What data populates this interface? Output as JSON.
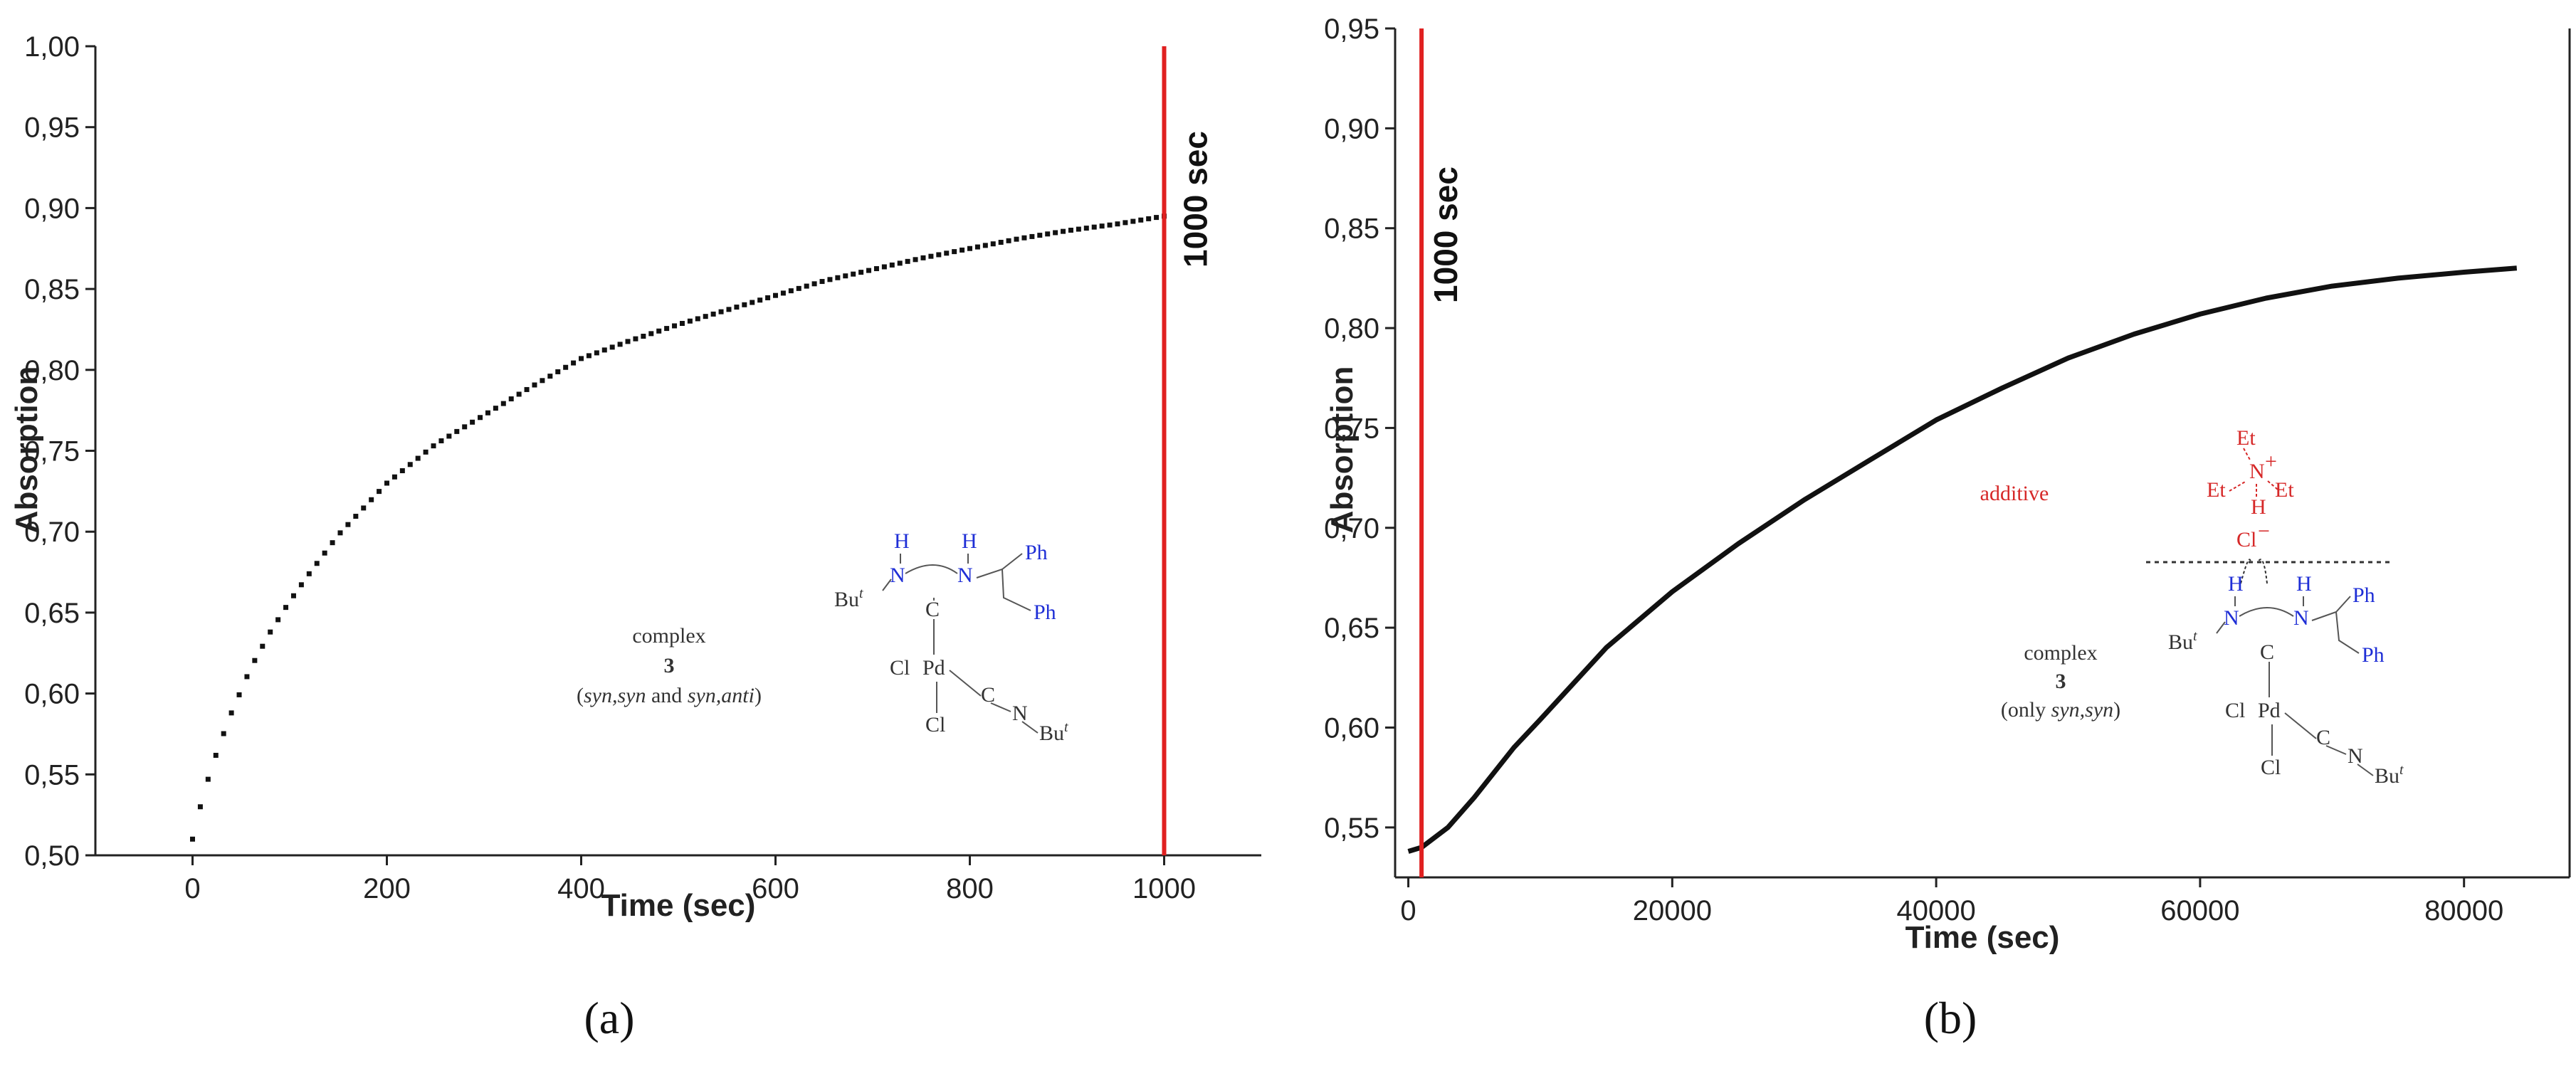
{
  "colors": {
    "data": "#111111",
    "marker": "#e02020",
    "blue": "#1f2fd6",
    "red": "#d62828"
  },
  "chart_data": [
    {
      "panel": "a",
      "type": "scatter",
      "panel_label": "(a)",
      "title": "",
      "xlabel": "Time (sec)",
      "ylabel": "Absorption",
      "xlim": [
        -100,
        1100
      ],
      "ylim": [
        0.5,
        1.0
      ],
      "x_ticks": [
        0,
        200,
        400,
        600,
        800,
        1000
      ],
      "x_tick_labels": [
        "0",
        "200",
        "400",
        "600",
        "800",
        "1000"
      ],
      "y_ticks": [
        0.5,
        0.55,
        0.6,
        0.65,
        0.7,
        0.75,
        0.8,
        0.85,
        0.9,
        0.95,
        1.0
      ],
      "y_tick_labels": [
        "0,50",
        "0,55",
        "0,60",
        "0,65",
        "0,70",
        "0,75",
        "0,80",
        "0,85",
        "0,90",
        "0,95",
        "1,00"
      ],
      "series": [
        {
          "x": [
            0,
            10,
            20,
            30,
            40,
            50,
            60,
            80,
            100,
            120,
            150,
            200,
            250,
            300,
            350,
            400,
            450,
            500,
            550,
            600,
            650,
            700,
            750,
            800,
            850,
            900,
            950,
            1000
          ],
          "y": [
            0.51,
            0.535,
            0.555,
            0.572,
            0.588,
            0.602,
            0.616,
            0.638,
            0.657,
            0.674,
            0.698,
            0.73,
            0.754,
            0.772,
            0.79,
            0.807,
            0.818,
            0.828,
            0.837,
            0.846,
            0.855,
            0.862,
            0.869,
            0.875,
            0.881,
            0.886,
            0.89,
            0.895
          ]
        }
      ],
      "marker": {
        "x": 1000,
        "label": "1000 sec"
      },
      "annotations": {
        "complex_label": "complex",
        "complex_number": "3",
        "isomers_open": "(",
        "isomers_syn1": "syn,syn",
        "isomers_and": " and ",
        "isomers_syn2": "syn,anti",
        "isomers_close": ")"
      }
    },
    {
      "panel": "b",
      "type": "line",
      "panel_label": "(b)",
      "title": "",
      "xlabel": "Time (sec)",
      "ylabel": "Absorption",
      "xlim": [
        -1000,
        88000
      ],
      "ylim": [
        0.525,
        0.95
      ],
      "x_ticks": [
        0,
        20000,
        40000,
        60000,
        80000
      ],
      "x_tick_labels": [
        "0",
        "20000",
        "40000",
        "60000",
        "80000"
      ],
      "y_ticks": [
        0.55,
        0.6,
        0.65,
        0.7,
        0.75,
        0.8,
        0.85,
        0.9,
        0.95
      ],
      "y_tick_labels": [
        "0,55",
        "0,60",
        "0,65",
        "0,70",
        "0,75",
        "0,80",
        "0,85",
        "0,90",
        "0,95"
      ],
      "series": [
        {
          "x": [
            0,
            1000,
            3000,
            5000,
            8000,
            10000,
            15000,
            20000,
            25000,
            30000,
            35000,
            40000,
            45000,
            50000,
            55000,
            60000,
            65000,
            70000,
            75000,
            80000,
            84000
          ],
          "y": [
            0.538,
            0.54,
            0.55,
            0.565,
            0.59,
            0.604,
            0.64,
            0.668,
            0.692,
            0.714,
            0.734,
            0.754,
            0.77,
            0.785,
            0.797,
            0.807,
            0.815,
            0.821,
            0.825,
            0.828,
            0.83
          ]
        }
      ],
      "marker": {
        "x": 1000,
        "label": "1000 sec"
      },
      "annotations": {
        "additive_label": "additive",
        "complex_label": "complex",
        "complex_number": "3",
        "isomers_open": "(only ",
        "isomers_syn1": "syn,syn",
        "isomers_close": ")"
      }
    }
  ]
}
